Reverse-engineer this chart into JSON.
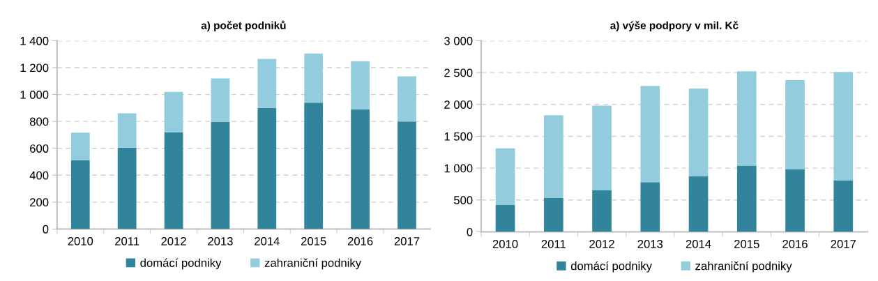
{
  "chart_data": [
    {
      "type": "bar",
      "title": "a) počet podniků",
      "stacked": true,
      "categories": [
        "2010",
        "2011",
        "2012",
        "2013",
        "2014",
        "2015",
        "2016",
        "2017"
      ],
      "series": [
        {
          "name": "domácí podniky",
          "color": "#31849b",
          "values": [
            510,
            605,
            718,
            795,
            900,
            940,
            890,
            800
          ]
        },
        {
          "name": "zahraniční podniky",
          "color": "#93cddd",
          "values": [
            207,
            255,
            302,
            325,
            365,
            365,
            358,
            335
          ]
        }
      ],
      "ylim": [
        0,
        1400
      ],
      "yticks": [
        {
          "value": 0,
          "label": "0"
        },
        {
          "value": 200,
          "label": "200"
        },
        {
          "value": 400,
          "label": "400"
        },
        {
          "value": 600,
          "label": "600"
        },
        {
          "value": 800,
          "label": "800"
        },
        {
          "value": 1000,
          "label": "1 000"
        },
        {
          "value": 1200,
          "label": "1 200"
        },
        {
          "value": 1400,
          "label": "1 400"
        }
      ],
      "grid": "y",
      "legend": "bottom"
    },
    {
      "type": "bar",
      "title": "a) výše podpory v mil. Kč",
      "stacked": true,
      "categories": [
        "2010",
        "2011",
        "2012",
        "2013",
        "2014",
        "2015",
        "2016",
        "2017"
      ],
      "series": [
        {
          "name": "domácí podniky",
          "color": "#31849b",
          "values": [
            420,
            530,
            650,
            780,
            870,
            1040,
            980,
            810
          ]
        },
        {
          "name": "zahraniční podniky",
          "color": "#93cddd",
          "values": [
            890,
            1300,
            1330,
            1510,
            1380,
            1480,
            1400,
            1700
          ]
        }
      ],
      "ylim": [
        0,
        3000
      ],
      "yticks": [
        {
          "value": 0,
          "label": "0"
        },
        {
          "value": 500,
          "label": "500"
        },
        {
          "value": 1000,
          "label": "1 000"
        },
        {
          "value": 1500,
          "label": "1 500"
        },
        {
          "value": 2000,
          "label": "2 000"
        },
        {
          "value": 2500,
          "label": "2 500"
        },
        {
          "value": 3000,
          "label": "3 000"
        }
      ],
      "grid": "y",
      "legend": "bottom"
    }
  ]
}
